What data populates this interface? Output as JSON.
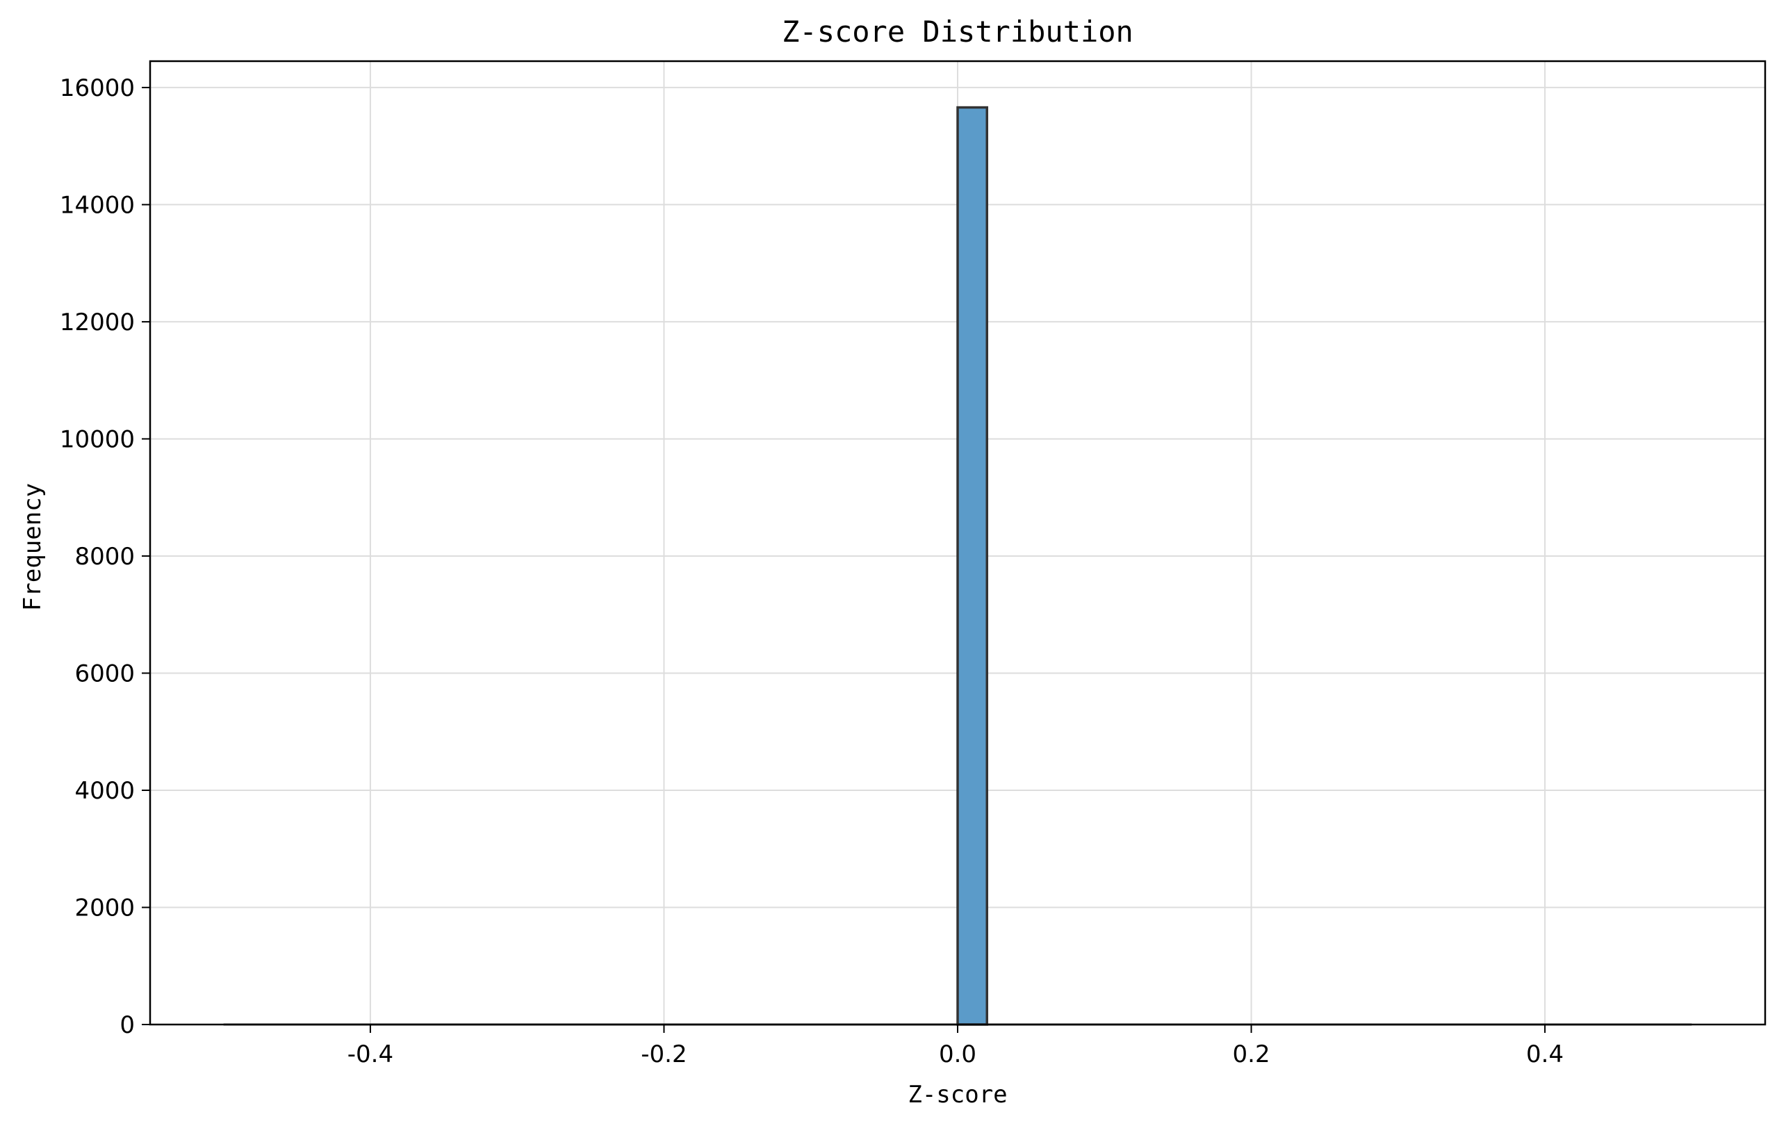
{
  "chart_data": {
    "type": "bar",
    "title": "Z-score Distribution",
    "xlabel": "Z-score",
    "ylabel": "Frequency",
    "xlim": [
      -0.55,
      0.55
    ],
    "ylim": [
      0,
      16450
    ],
    "xticks": [
      -0.4,
      -0.2,
      0.0,
      0.2,
      0.4
    ],
    "xtick_labels": [
      "-0.4",
      "-0.2",
      "0.0",
      "0.2",
      "0.4"
    ],
    "yticks": [
      0,
      2000,
      4000,
      6000,
      8000,
      10000,
      12000,
      14000,
      16000
    ],
    "ytick_labels": [
      "0",
      "2000",
      "4000",
      "6000",
      "8000",
      "10000",
      "12000",
      "14000",
      "16000"
    ],
    "grid": true,
    "series": [
      {
        "bins": [
          {
            "x0": 0.0,
            "x1": 0.02,
            "value": 15660
          }
        ]
      }
    ],
    "baseline_range": [
      -0.5,
      0.5
    ],
    "colors": {
      "bar_fill": "#5b9bc9",
      "bar_edge": "#333333",
      "grid": "#dddddd",
      "axis": "#000000"
    }
  }
}
